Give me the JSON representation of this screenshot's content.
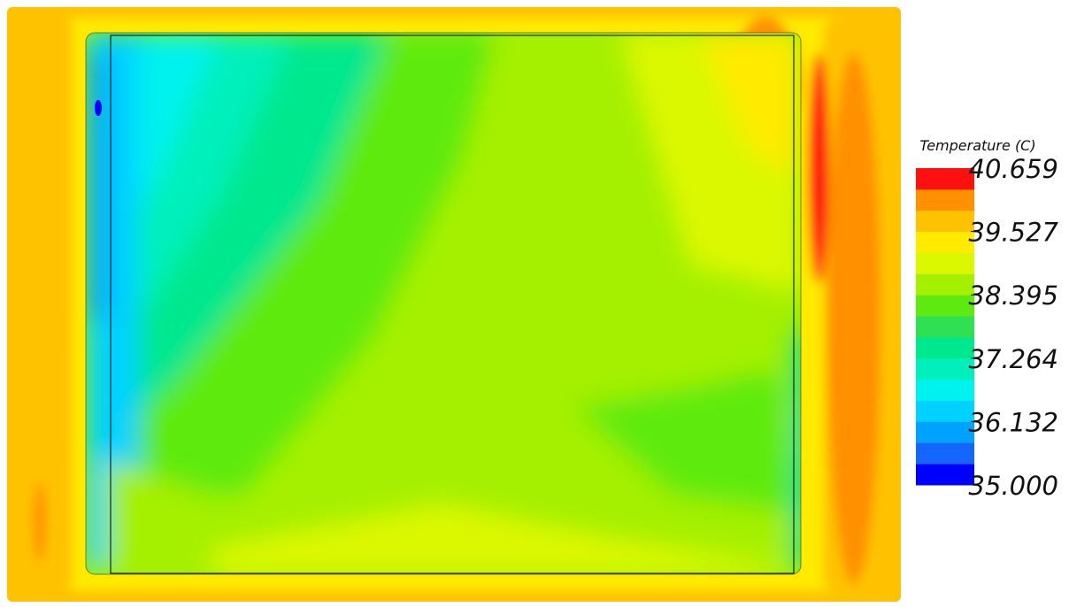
{
  "chart_data": {
    "type": "contour",
    "colorbar_title": "Temperature (C)",
    "clim": [
      35,
      40.659
    ],
    "colorbar_ticks": [
      {
        "value": 35,
        "label": "35.000"
      },
      36.132,
      37.264,
      38.395,
      39.527,
      40.659
    ],
    "colorbar_colors": [
      "#0000ff",
      "#1565ff",
      "#00a2ff",
      "#00d2ff",
      "#00f2ee",
      "#00f0bc",
      "#00e88e",
      "#2ee052",
      "#5eea10",
      "#a4f000",
      "#dcf800",
      "#ffea00",
      "#ffc200",
      "#ff9000",
      "#ff1010"
    ]
  }
}
